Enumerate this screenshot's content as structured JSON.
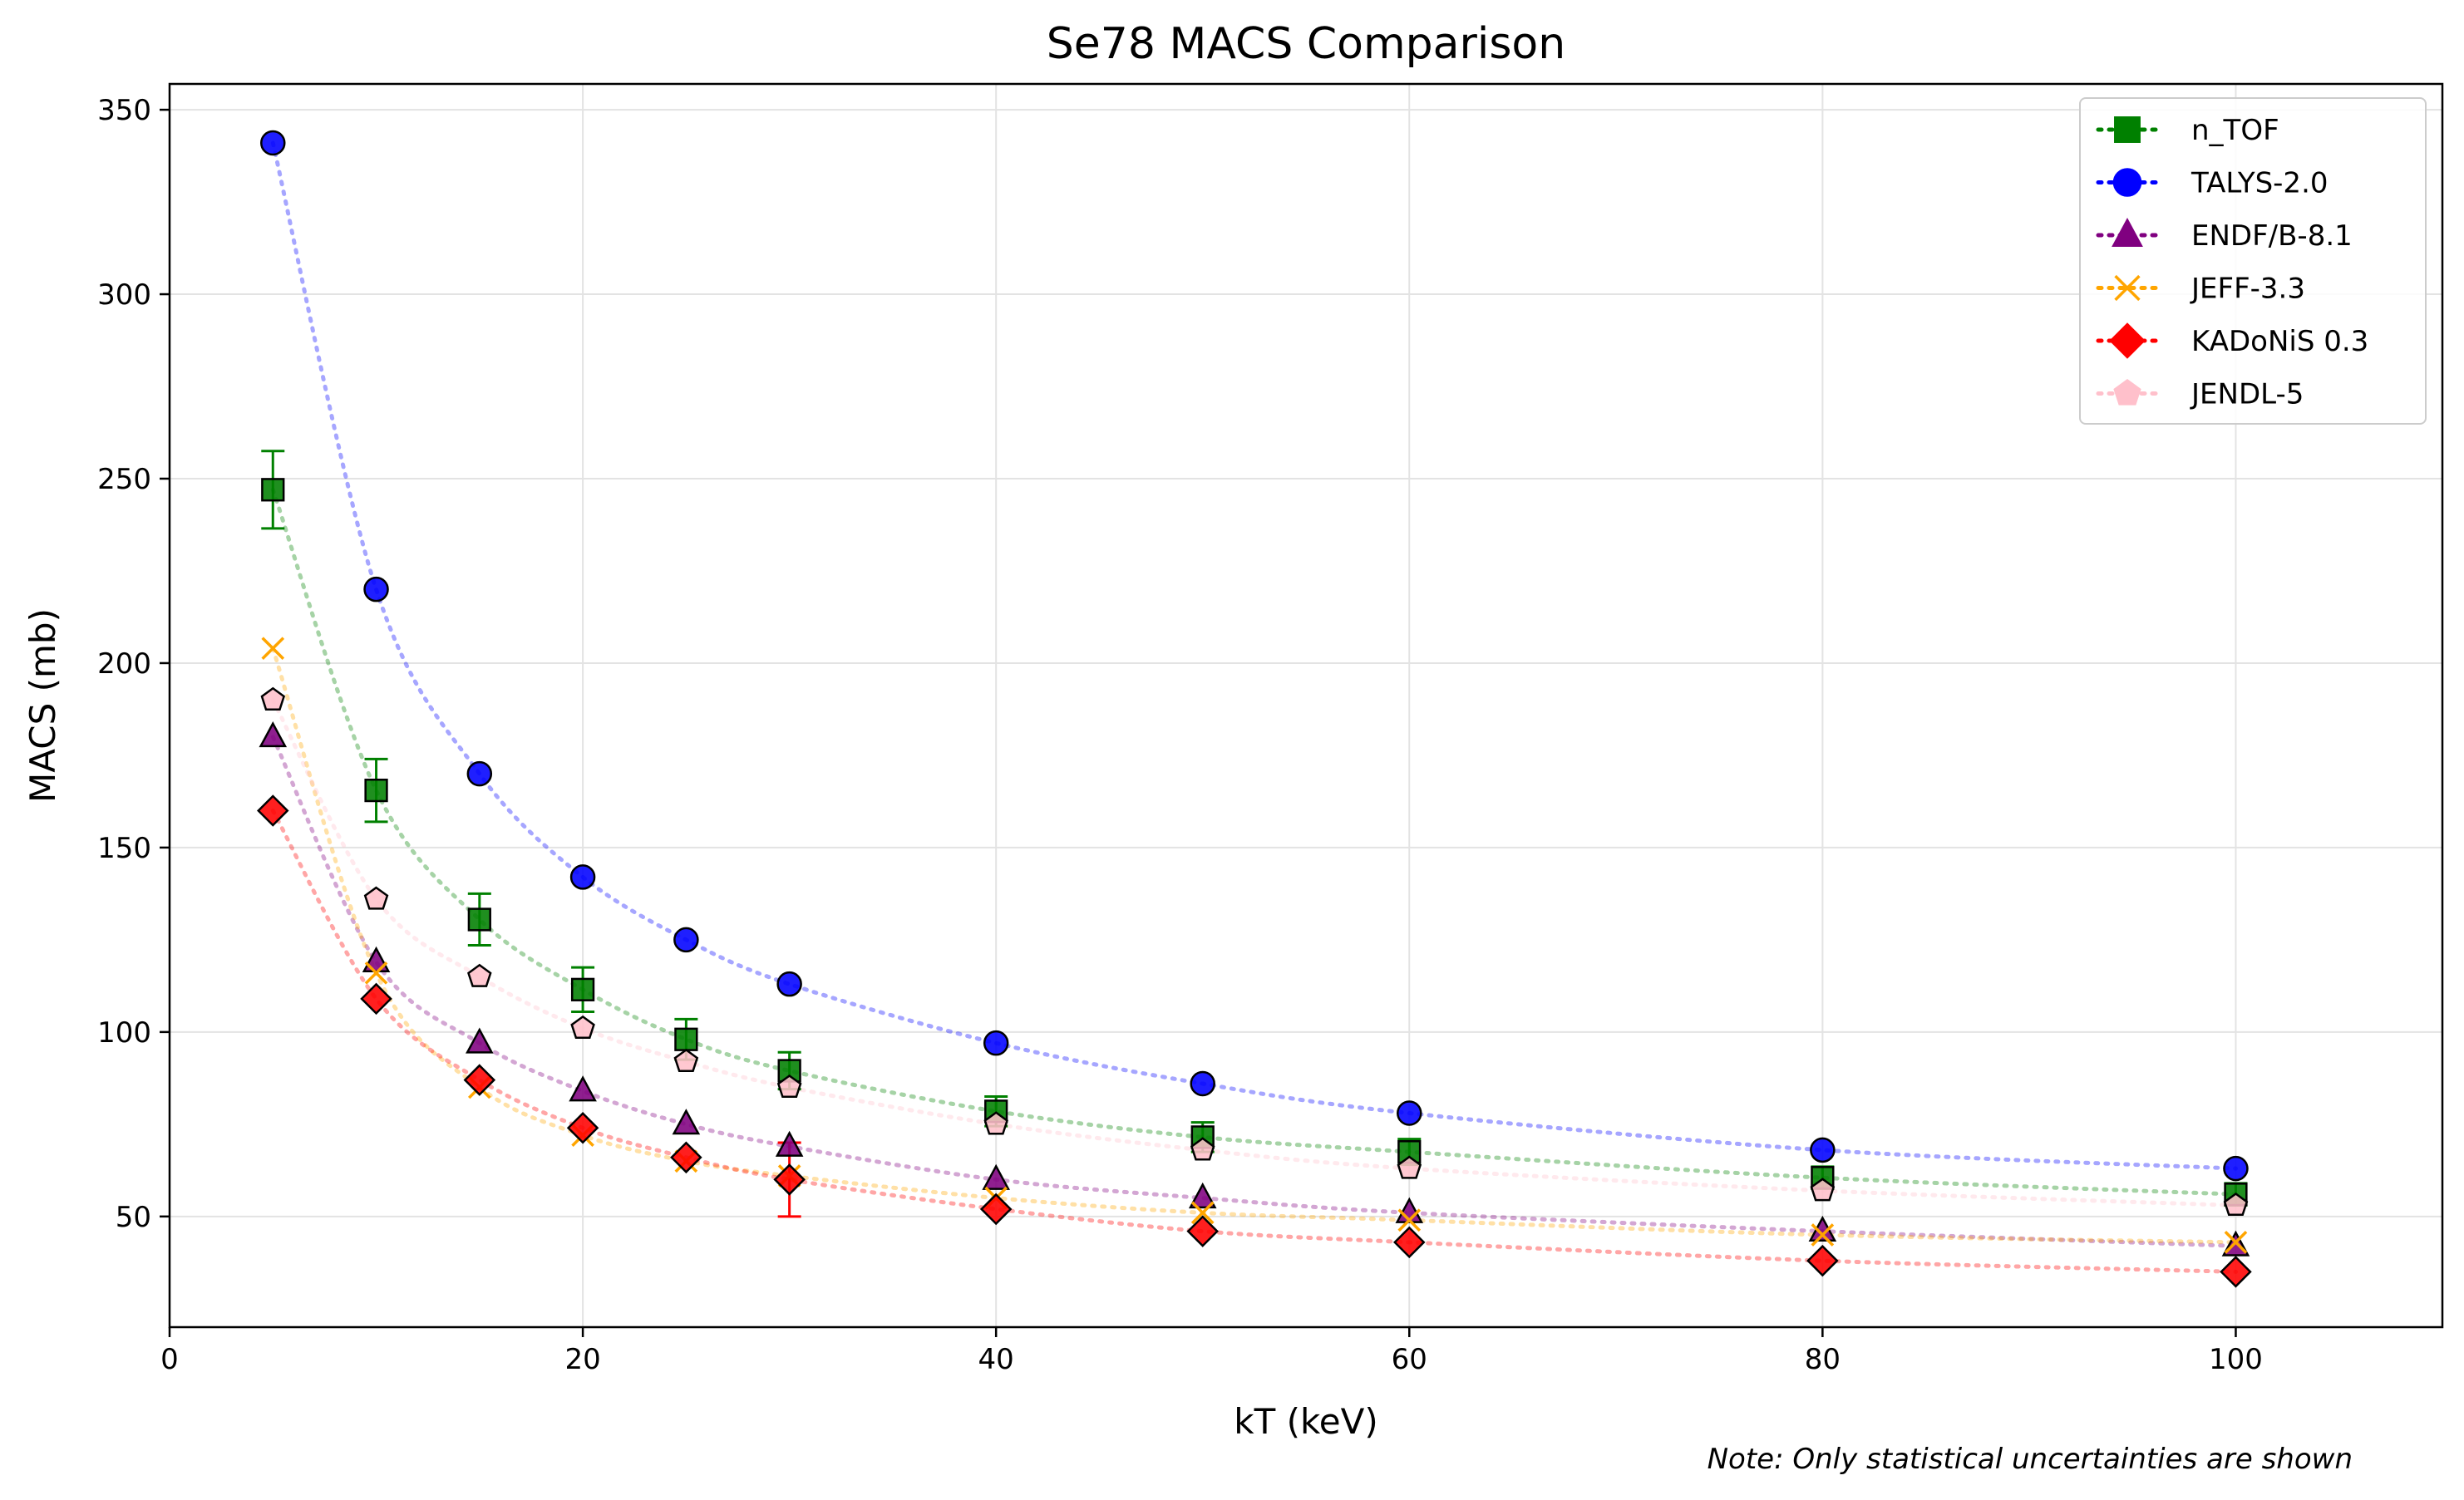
{
  "chart_data": {
    "type": "scatter",
    "title": "Se78 MACS Comparison",
    "xlabel": "kT (keV)",
    "ylabel": "MACS (mb)",
    "xlim": [
      0,
      110
    ],
    "ylim": [
      20,
      357
    ],
    "xticks": [
      0,
      20,
      40,
      60,
      80,
      100
    ],
    "yticks": [
      50,
      100,
      150,
      200,
      250,
      300,
      350
    ],
    "grid": true,
    "legend_position": "top-right",
    "note": "Note: Only statistical uncertainties are shown",
    "series": [
      {
        "name": "n_TOF",
        "marker": "square",
        "color": "#008000",
        "x": [
          5,
          10,
          15,
          20,
          25,
          30,
          40,
          50,
          60,
          80,
          100
        ],
        "y": [
          247,
          165.5,
          130.5,
          111.5,
          98,
          89.5,
          78.5,
          71.5,
          67.5,
          60.5,
          56
        ],
        "yerr": [
          10.5,
          8.5,
          7,
          6,
          5.5,
          5,
          4,
          4,
          3.5,
          3,
          3
        ]
      },
      {
        "name": "TALYS-2.0",
        "marker": "circle",
        "color": "#0000ff",
        "x": [
          5,
          10,
          15,
          20,
          25,
          30,
          40,
          50,
          60,
          80,
          100
        ],
        "y": [
          341,
          220,
          170,
          142,
          125,
          113,
          97,
          86,
          78,
          68,
          63
        ]
      },
      {
        "name": "ENDF/B-8.1",
        "marker": "triangle",
        "color": "#800080",
        "x": [
          5,
          10,
          15,
          20,
          25,
          30,
          40,
          50,
          60,
          80,
          100
        ],
        "y": [
          180,
          119,
          97,
          84,
          75,
          69,
          60,
          55,
          51,
          46,
          42
        ]
      },
      {
        "name": "JEFF-3.3",
        "marker": "x",
        "color": "#ffa500",
        "x": [
          5,
          10,
          15,
          20,
          25,
          30,
          40,
          50,
          60,
          80,
          100
        ],
        "y": [
          204,
          116,
          85,
          72,
          65,
          61,
          55,
          51,
          49,
          45,
          43
        ]
      },
      {
        "name": "KADoNiS 0.3",
        "marker": "diamond",
        "color": "#ff0000",
        "x": [
          5,
          10,
          15,
          20,
          25,
          30,
          40,
          50,
          60,
          80,
          100
        ],
        "y": [
          160,
          109,
          87,
          74,
          66,
          60,
          52,
          46,
          43,
          38,
          35
        ],
        "yerr": [
          0,
          0,
          0,
          0,
          0,
          10,
          0,
          0,
          0,
          0,
          0
        ]
      },
      {
        "name": "JENDL-5",
        "marker": "pentagon",
        "color": "#ffc0cb",
        "x": [
          5,
          10,
          15,
          20,
          25,
          30,
          40,
          50,
          60,
          80,
          100
        ],
        "y": [
          190,
          136,
          115,
          101,
          92,
          85,
          75,
          68,
          63,
          57,
          53
        ]
      }
    ]
  }
}
